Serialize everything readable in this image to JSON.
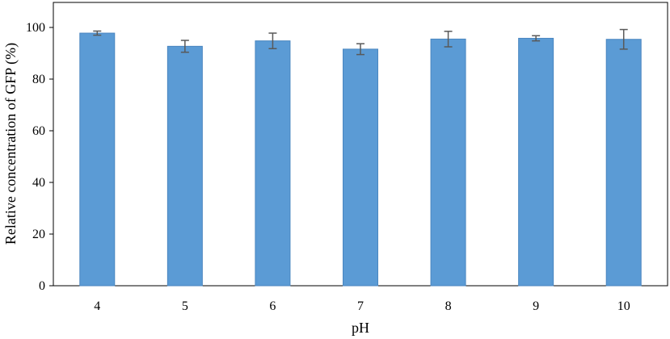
{
  "chart_data": {
    "type": "bar",
    "title": "",
    "xlabel": "pH",
    "ylabel": "Relative concentration of GFP (%)",
    "categories": [
      "4",
      "5",
      "6",
      "7",
      "8",
      "9",
      "10"
    ],
    "values": [
      97.8,
      92.7,
      94.8,
      91.6,
      95.5,
      95.8,
      95.4
    ],
    "errors": [
      0.8,
      2.3,
      3.0,
      2.1,
      3.0,
      1.0,
      3.8
    ],
    "ylim": [
      0,
      100
    ],
    "yticks": [
      0,
      20,
      40,
      60,
      80,
      100
    ],
    "grid": false,
    "legend": "none",
    "colors": {
      "bar": "#5b9bd5",
      "bar_edge": "#4a86c0",
      "error_bar": "#595959",
      "axis": "#000000"
    }
  }
}
